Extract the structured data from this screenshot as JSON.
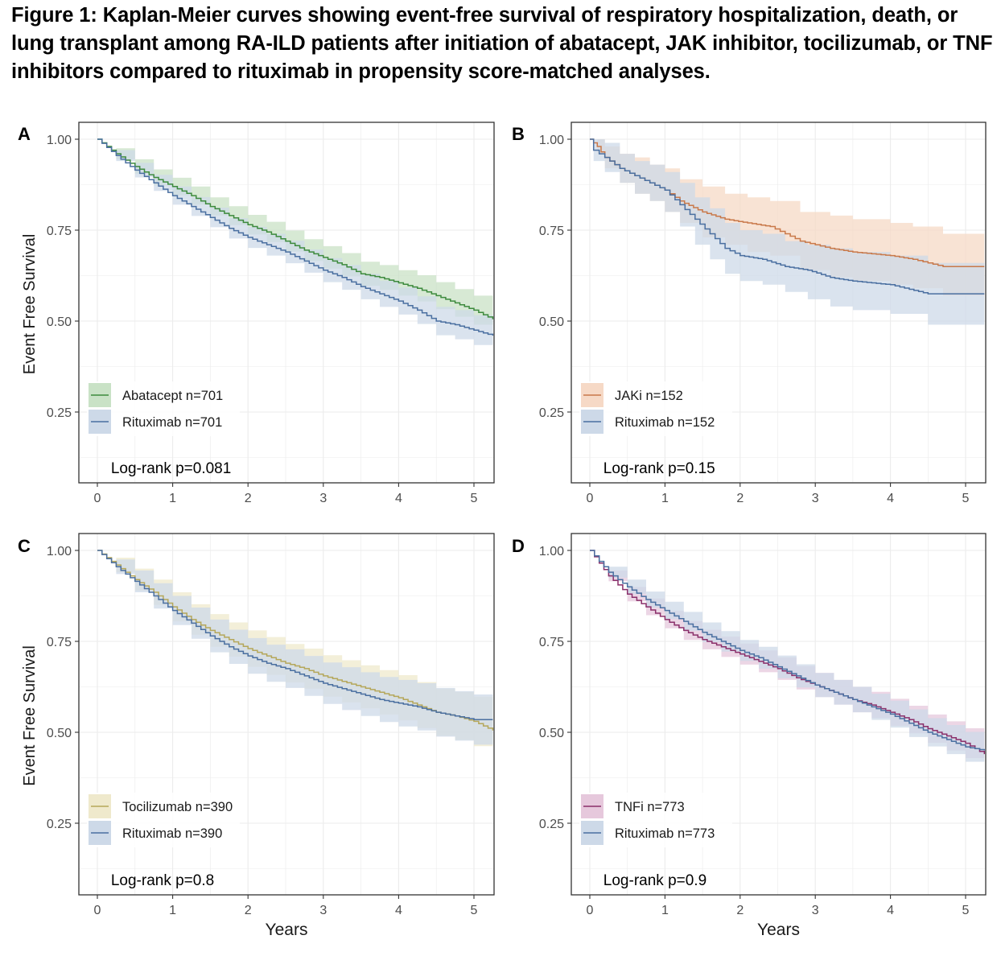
{
  "figure": {
    "title": "Figure 1: Kaplan-Meier curves showing event-free survival of respiratory hospitalization, death, or lung transplant among RA-ILD patients after initiation of abatacept, JAK inhibitor, tocilizumab, or TNF inhibitors compared to rituximab in propensity score-matched analyses."
  },
  "chart_data": [
    {
      "type": "line",
      "panel": "A",
      "title": "",
      "xlabel": "",
      "ylabel": "Event Free Survival",
      "xlim": [
        -0.23,
        5.25
      ],
      "ylim": [
        0.1,
        1.04
      ],
      "xticks": [
        "0",
        "1",
        "2",
        "3",
        "4",
        "5"
      ],
      "yticks": [
        "0.25",
        "0.50",
        "0.75",
        "1.00"
      ],
      "grid": true,
      "legend_position": "bottom-left",
      "annotation": "Log-rank p=0.081",
      "series": [
        {
          "name": "Abatacept n=701",
          "color": "#3d8a3d",
          "fill": "#c9e2c6",
          "x": [
            0,
            0.25,
            0.5,
            0.75,
            1,
            1.25,
            1.5,
            1.75,
            2,
            2.25,
            2.5,
            2.75,
            3,
            3.25,
            3.5,
            3.75,
            4,
            4.25,
            4.5,
            4.75,
            5,
            5.25
          ],
          "y": [
            1.0,
            0.96,
            0.925,
            0.895,
            0.87,
            0.845,
            0.815,
            0.79,
            0.765,
            0.745,
            0.72,
            0.695,
            0.675,
            0.655,
            0.63,
            0.62,
            0.605,
            0.59,
            0.57,
            0.55,
            0.53,
            0.505
          ],
          "lower": [
            1.0,
            0.945,
            0.905,
            0.873,
            0.846,
            0.82,
            0.79,
            0.764,
            0.738,
            0.717,
            0.691,
            0.665,
            0.644,
            0.623,
            0.597,
            0.586,
            0.57,
            0.554,
            0.533,
            0.512,
            0.49,
            0.465
          ],
          "upper": [
            1.0,
            0.975,
            0.945,
            0.917,
            0.894,
            0.87,
            0.84,
            0.816,
            0.792,
            0.773,
            0.749,
            0.725,
            0.706,
            0.687,
            0.663,
            0.654,
            0.64,
            0.626,
            0.607,
            0.588,
            0.57,
            0.545
          ]
        },
        {
          "name": "Rituximab n=701",
          "color": "#4a6fa0",
          "fill": "#cdd9e8",
          "x": [
            0,
            0.25,
            0.5,
            0.75,
            1,
            1.25,
            1.5,
            1.75,
            2,
            2.25,
            2.5,
            2.75,
            3,
            3.25,
            3.5,
            3.75,
            4,
            4.25,
            4.5,
            4.75,
            5,
            5.25
          ],
          "y": [
            1.0,
            0.955,
            0.915,
            0.88,
            0.845,
            0.815,
            0.785,
            0.755,
            0.73,
            0.71,
            0.69,
            0.665,
            0.64,
            0.62,
            0.595,
            0.575,
            0.555,
            0.53,
            0.5,
            0.49,
            0.475,
            0.46
          ],
          "lower": [
            1.0,
            0.94,
            0.895,
            0.858,
            0.82,
            0.789,
            0.758,
            0.727,
            0.701,
            0.68,
            0.659,
            0.633,
            0.607,
            0.586,
            0.56,
            0.539,
            0.518,
            0.492,
            0.461,
            0.45,
            0.434,
            0.418
          ],
          "upper": [
            1.0,
            0.97,
            0.935,
            0.902,
            0.87,
            0.841,
            0.812,
            0.783,
            0.759,
            0.74,
            0.721,
            0.697,
            0.673,
            0.654,
            0.63,
            0.611,
            0.592,
            0.568,
            0.539,
            0.53,
            0.516,
            0.502
          ]
        }
      ]
    },
    {
      "type": "line",
      "panel": "B",
      "title": "",
      "xlabel": "",
      "ylabel": "",
      "xlim": [
        -0.23,
        5.25
      ],
      "ylim": [
        0.1,
        1.04
      ],
      "xticks": [
        "0",
        "1",
        "2",
        "3",
        "4",
        "5"
      ],
      "yticks": [
        "0.25",
        "0.50",
        "0.75",
        "1.00"
      ],
      "grid": true,
      "legend_position": "bottom-left",
      "annotation": "Log-rank p=0.15",
      "series": [
        {
          "name": "JAKi n=152",
          "color": "#c9794a",
          "fill": "#f6d9c6",
          "x": [
            0,
            0.1,
            0.2,
            0.4,
            0.6,
            0.8,
            1.0,
            1.2,
            1.5,
            1.8,
            2.1,
            2.4,
            2.8,
            3.2,
            3.5,
            4.0,
            4.3,
            4.7,
            5.25
          ],
          "y": [
            1.0,
            0.98,
            0.95,
            0.92,
            0.9,
            0.88,
            0.86,
            0.83,
            0.8,
            0.78,
            0.77,
            0.76,
            0.72,
            0.7,
            0.69,
            0.68,
            0.67,
            0.65,
            0.65
          ],
          "lower": [
            1.0,
            0.96,
            0.92,
            0.88,
            0.85,
            0.83,
            0.8,
            0.77,
            0.73,
            0.71,
            0.69,
            0.68,
            0.64,
            0.62,
            0.61,
            0.6,
            0.59,
            0.57,
            0.57
          ],
          "upper": [
            1.0,
            1.0,
            0.98,
            0.96,
            0.95,
            0.93,
            0.92,
            0.89,
            0.87,
            0.85,
            0.84,
            0.83,
            0.8,
            0.79,
            0.78,
            0.77,
            0.76,
            0.74,
            0.74
          ]
        },
        {
          "name": "Rituximab n=152",
          "color": "#4a6fa0",
          "fill": "#cdd9e8",
          "x": [
            0,
            0.05,
            0.2,
            0.4,
            0.6,
            0.8,
            1.0,
            1.2,
            1.4,
            1.6,
            1.8,
            2.0,
            2.3,
            2.6,
            2.9,
            3.2,
            3.5,
            4.0,
            4.5,
            5.25
          ],
          "y": [
            1.0,
            0.97,
            0.95,
            0.92,
            0.9,
            0.88,
            0.86,
            0.82,
            0.78,
            0.74,
            0.7,
            0.68,
            0.67,
            0.65,
            0.64,
            0.62,
            0.61,
            0.6,
            0.575,
            0.575
          ],
          "lower": [
            1.0,
            0.94,
            0.91,
            0.88,
            0.85,
            0.83,
            0.8,
            0.76,
            0.71,
            0.67,
            0.63,
            0.61,
            0.6,
            0.58,
            0.56,
            0.54,
            0.53,
            0.52,
            0.49,
            0.49
          ],
          "upper": [
            1.0,
            1.0,
            0.99,
            0.96,
            0.94,
            0.93,
            0.91,
            0.88,
            0.84,
            0.81,
            0.77,
            0.75,
            0.74,
            0.72,
            0.71,
            0.7,
            0.69,
            0.68,
            0.66,
            0.66
          ]
        }
      ]
    },
    {
      "type": "line",
      "panel": "C",
      "title": "",
      "xlabel": "Years",
      "ylabel": "Event Free Survival",
      "xlim": [
        -0.23,
        5.25
      ],
      "ylim": [
        0.1,
        1.04
      ],
      "xticks": [
        "0",
        "1",
        "2",
        "3",
        "4",
        "5"
      ],
      "yticks": [
        "0.25",
        "0.50",
        "0.75",
        "1.00"
      ],
      "grid": true,
      "legend_position": "bottom-left",
      "annotation": "Log-rank p=0.8",
      "series": [
        {
          "name": "Tocilizumab n=390",
          "color": "#b5a75a",
          "fill": "#efe9cc",
          "x": [
            0,
            0.25,
            0.5,
            0.75,
            1,
            1.25,
            1.5,
            1.75,
            2,
            2.25,
            2.5,
            2.75,
            3,
            3.25,
            3.5,
            3.75,
            4,
            4.25,
            4.5,
            4.75,
            5,
            5.25
          ],
          "y": [
            1.0,
            0.96,
            0.92,
            0.885,
            0.845,
            0.81,
            0.78,
            0.755,
            0.73,
            0.71,
            0.69,
            0.675,
            0.655,
            0.64,
            0.625,
            0.61,
            0.595,
            0.575,
            0.555,
            0.545,
            0.53,
            0.505
          ],
          "lower": [
            1.0,
            0.94,
            0.89,
            0.85,
            0.805,
            0.768,
            0.735,
            0.708,
            0.68,
            0.658,
            0.637,
            0.62,
            0.598,
            0.582,
            0.566,
            0.549,
            0.533,
            0.512,
            0.49,
            0.479,
            0.462,
            0.47
          ],
          "upper": [
            1.0,
            0.98,
            0.95,
            0.92,
            0.885,
            0.852,
            0.825,
            0.802,
            0.78,
            0.762,
            0.743,
            0.73,
            0.712,
            0.698,
            0.684,
            0.671,
            0.657,
            0.638,
            0.62,
            0.611,
            0.598,
            0.575
          ]
        },
        {
          "name": "Rituximab n=390",
          "color": "#4a6fa0",
          "fill": "#cdd9e8",
          "x": [
            0,
            0.25,
            0.5,
            0.75,
            1,
            1.25,
            1.5,
            1.75,
            2,
            2.25,
            2.5,
            2.75,
            3,
            3.25,
            3.5,
            3.75,
            4,
            4.25,
            4.5,
            4.75,
            5,
            5.25
          ],
          "y": [
            1.0,
            0.955,
            0.915,
            0.875,
            0.835,
            0.8,
            0.765,
            0.735,
            0.71,
            0.69,
            0.675,
            0.655,
            0.635,
            0.62,
            0.605,
            0.59,
            0.58,
            0.57,
            0.555,
            0.545,
            0.535,
            0.535
          ],
          "lower": [
            1.0,
            0.935,
            0.885,
            0.84,
            0.795,
            0.757,
            0.72,
            0.688,
            0.661,
            0.639,
            0.622,
            0.6,
            0.578,
            0.561,
            0.545,
            0.528,
            0.516,
            0.505,
            0.488,
            0.477,
            0.466,
            0.466
          ],
          "upper": [
            1.0,
            0.975,
            0.945,
            0.91,
            0.875,
            0.843,
            0.81,
            0.782,
            0.759,
            0.741,
            0.728,
            0.71,
            0.692,
            0.679,
            0.665,
            0.652,
            0.644,
            0.635,
            0.622,
            0.613,
            0.604,
            0.604
          ]
        }
      ]
    },
    {
      "type": "line",
      "panel": "D",
      "title": "",
      "xlabel": "Years",
      "ylabel": "",
      "xlim": [
        -0.23,
        5.25
      ],
      "ylim": [
        0.1,
        1.04
      ],
      "xticks": [
        "0",
        "1",
        "2",
        "3",
        "4",
        "5"
      ],
      "yticks": [
        "0.25",
        "0.50",
        "0.75",
        "1.00"
      ],
      "grid": true,
      "legend_position": "bottom-left",
      "annotation": "Log-rank p=0.9",
      "series": [
        {
          "name": "TNFi n=773",
          "color": "#8a2f6a",
          "fill": "#e6c8dc",
          "x": [
            0,
            0.25,
            0.5,
            0.75,
            1,
            1.25,
            1.5,
            1.75,
            2,
            2.25,
            2.5,
            2.75,
            3,
            3.25,
            3.5,
            3.75,
            4,
            4.25,
            4.5,
            4.75,
            5,
            5.25
          ],
          "y": [
            1.0,
            0.93,
            0.88,
            0.845,
            0.81,
            0.78,
            0.755,
            0.735,
            0.715,
            0.695,
            0.675,
            0.65,
            0.63,
            0.61,
            0.59,
            0.575,
            0.555,
            0.535,
            0.51,
            0.49,
            0.47,
            0.44
          ],
          "lower": [
            1.0,
            0.915,
            0.86,
            0.822,
            0.786,
            0.754,
            0.728,
            0.707,
            0.686,
            0.665,
            0.644,
            0.618,
            0.597,
            0.576,
            0.555,
            0.539,
            0.518,
            0.497,
            0.471,
            0.45,
            0.429,
            0.4
          ],
          "upper": [
            1.0,
            0.945,
            0.9,
            0.868,
            0.834,
            0.806,
            0.782,
            0.763,
            0.744,
            0.725,
            0.706,
            0.682,
            0.663,
            0.644,
            0.625,
            0.611,
            0.592,
            0.573,
            0.549,
            0.53,
            0.511,
            0.48
          ]
        },
        {
          "name": "Rituximab n=773",
          "color": "#4a6fa0",
          "fill": "#cdd9e8",
          "x": [
            0,
            0.25,
            0.5,
            0.75,
            1,
            1.25,
            1.5,
            1.75,
            2,
            2.25,
            2.5,
            2.75,
            3,
            3.25,
            3.5,
            3.75,
            4,
            4.25,
            4.5,
            4.75,
            5,
            5.25
          ],
          "y": [
            1.0,
            0.94,
            0.9,
            0.865,
            0.835,
            0.805,
            0.775,
            0.75,
            0.725,
            0.705,
            0.68,
            0.655,
            0.63,
            0.61,
            0.59,
            0.57,
            0.55,
            0.525,
            0.5,
            0.48,
            0.46,
            0.45
          ],
          "lower": [
            1.0,
            0.925,
            0.88,
            0.843,
            0.811,
            0.779,
            0.748,
            0.722,
            0.696,
            0.675,
            0.649,
            0.623,
            0.597,
            0.576,
            0.555,
            0.534,
            0.513,
            0.487,
            0.461,
            0.44,
            0.419,
            0.41
          ],
          "upper": [
            1.0,
            0.955,
            0.92,
            0.887,
            0.859,
            0.831,
            0.802,
            0.778,
            0.754,
            0.735,
            0.711,
            0.687,
            0.663,
            0.644,
            0.625,
            0.606,
            0.587,
            0.563,
            0.539,
            0.52,
            0.501,
            0.49
          ]
        }
      ]
    }
  ]
}
